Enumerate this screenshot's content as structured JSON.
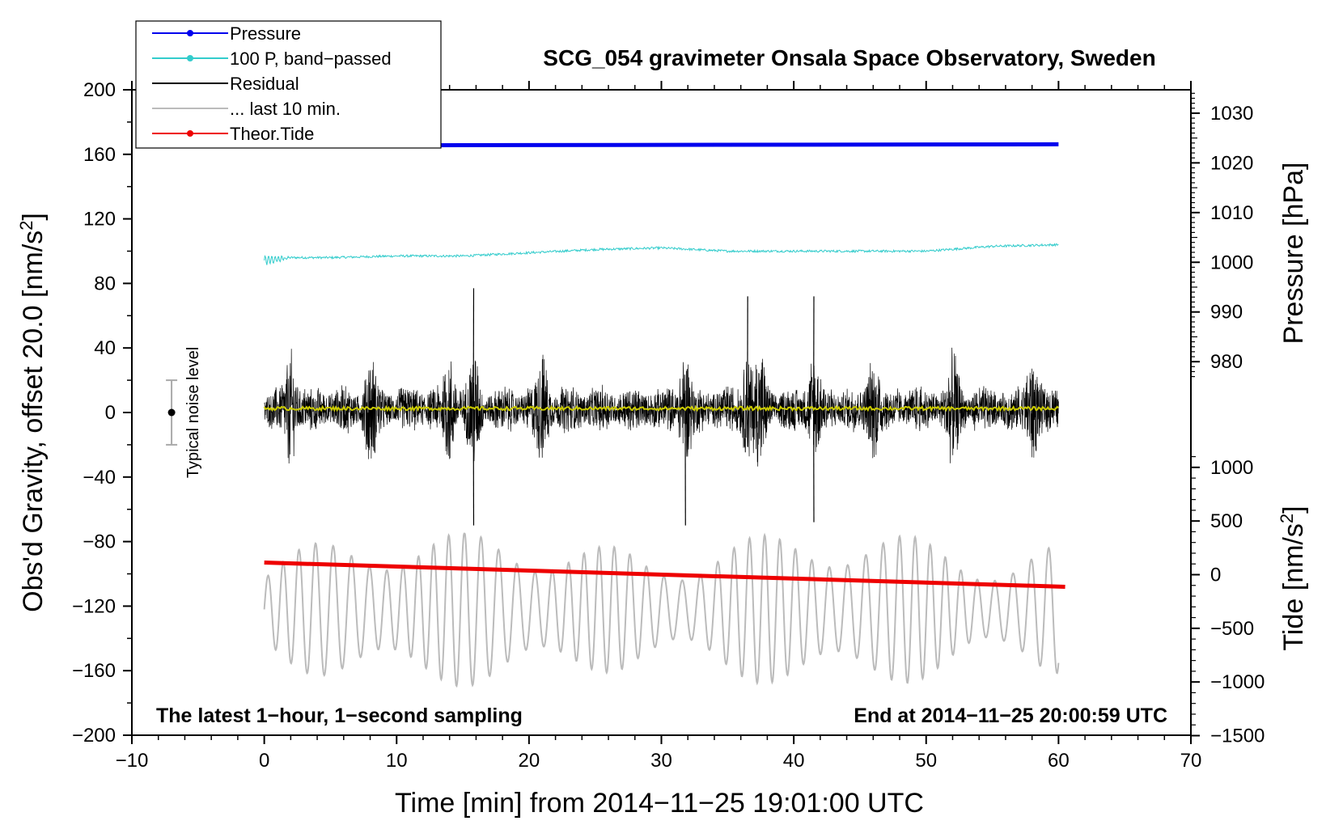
{
  "chart_data": {
    "type": "line",
    "title": "SCG_054 gravimeter Onsala Space Observatory, Sweden",
    "xlabel": "Time [min] from 2014−11−25 19:01:00 UTC",
    "ylabel_left_main": "Obs'd Gravity, offset 20.0 [nm/s",
    "ylabel_left_sup": "2",
    "ylabel_left_tail": "]",
    "ylabel_right_pressure": "Pressure [hPa]",
    "ylabel_right_tide_main": "Tide [nm/s",
    "ylabel_right_tide_sup": "2",
    "ylabel_right_tide_tail": "]",
    "note_left": "The latest 1−hour, 1−second sampling",
    "note_right": "End at 2014−11−25 20:00:59 UTC",
    "noise_label": "Typical noise level",
    "noise_level": {
      "center": 0,
      "halfwidth": 20
    },
    "xlim": [
      -10,
      70
    ],
    "ylim": [
      -200,
      200
    ],
    "x_ticks": [
      "−10",
      "0",
      "10",
      "20",
      "30",
      "40",
      "50",
      "60",
      "70"
    ],
    "x_tick_values": [
      -10,
      0,
      10,
      20,
      30,
      40,
      50,
      60,
      70
    ],
    "y_ticks": [
      "200",
      "160",
      "120",
      "80",
      "40",
      "0",
      "−40",
      "−80",
      "−120",
      "−160",
      "−200"
    ],
    "y_tick_values": [
      200,
      160,
      120,
      80,
      40,
      0,
      -40,
      -80,
      -120,
      -160,
      -200
    ],
    "pressure_axis": {
      "ticks": [
        "1030",
        "1020",
        "1010",
        "1000",
        "990",
        "980"
      ],
      "tick_values": [
        1030,
        1020,
        1010,
        1000,
        990,
        980
      ],
      "gravity_at_1030": 185.5,
      "gravity_per_hPa": 3.08
    },
    "tide_axis": {
      "ticks": [
        "1000",
        "500",
        "0",
        "−500",
        "−1000",
        "−1500"
      ],
      "tick_values": [
        1000,
        500,
        0,
        -500,
        -1000,
        -1500
      ],
      "gravity_at_0": -100.5,
      "gravity_per_unit": 0.0665
    },
    "legend": [
      {
        "label": "Pressure",
        "color": "#0000ee",
        "marker": true
      },
      {
        "label": "100 P, band−passed",
        "color": "#33cccc",
        "marker": true
      },
      {
        "label": "Residual",
        "color": "#000000",
        "marker": false
      },
      {
        "label": "... last 10 min.",
        "color": "#bbbbbb",
        "marker": false
      },
      {
        "label": "Theor.Tide",
        "color": "#ee0000",
        "marker": true
      }
    ],
    "series": [
      {
        "name": "Pressure",
        "color": "#0000ee",
        "x_range": [
          0,
          60
        ],
        "gravity_start": 165.5,
        "gravity_end": 166.2
      },
      {
        "name": "100 P, band-passed",
        "color": "#33cccc",
        "x": [
          0,
          2,
          5,
          10,
          15,
          20,
          25,
          30,
          35,
          40,
          45,
          50,
          55,
          60
        ],
        "values": [
          94,
          96,
          96,
          97,
          97,
          99,
          101,
          102,
          100,
          100,
          100,
          100,
          103,
          104
        ]
      },
      {
        "name": "Residual",
        "color": "#000000",
        "x_range": [
          0,
          60
        ],
        "center": 2,
        "bursts_min": [
          2,
          8,
          14,
          15.8,
          21,
          31.8,
          36.5,
          37.5,
          41.5,
          46,
          52,
          58
        ],
        "extremes": [
          -70,
          77
        ]
      },
      {
        "name": "Residual smoothed",
        "color": "#cccc00",
        "x_range": [
          0,
          60
        ],
        "level": 2.5
      },
      {
        "name": "... last 10 min.",
        "color": "#bbbbbb",
        "x_range": [
          0,
          60
        ],
        "center": -122,
        "extremes": [
          -180,
          -75
        ]
      },
      {
        "name": "Theor.Tide",
        "color": "#ee0000",
        "x": [
          0,
          60.5
        ],
        "values": [
          -93,
          -108
        ]
      }
    ]
  }
}
